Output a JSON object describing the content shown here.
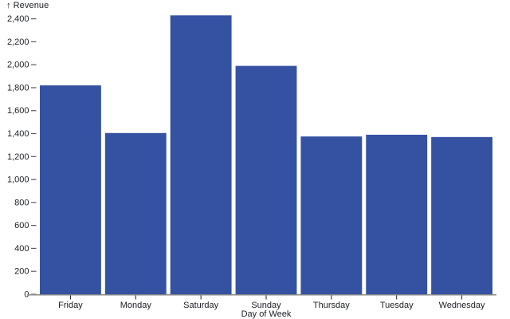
{
  "chart_data": {
    "type": "bar",
    "title": "",
    "categories": [
      "Friday",
      "Monday",
      "Saturday",
      "Sunday",
      "Thursday",
      "Tuesday",
      "Wednesday"
    ],
    "values": [
      1820,
      1405,
      2430,
      1990,
      1375,
      1390,
      1370
    ],
    "xlabel": "Day of Week",
    "ylabel": "Revenue",
    "ylabel_arrow": "↑",
    "ylim": [
      0,
      2400
    ],
    "y_tick_step": 200,
    "y_tick_labels": [
      "0",
      "200",
      "400",
      "600",
      "800",
      "1,000",
      "1,200",
      "1,400",
      "1,600",
      "1,800",
      "2,000",
      "2,200",
      "2,400"
    ],
    "grid": false,
    "legend": "none",
    "colors": {
      "bar": "#3552a2",
      "axis_line": "#8a8a8a",
      "y_tick_mark": "#5b5b5b",
      "x_tick_mark": "#1b1e23",
      "text": "#1b1e23",
      "background": "#ffffff"
    }
  }
}
